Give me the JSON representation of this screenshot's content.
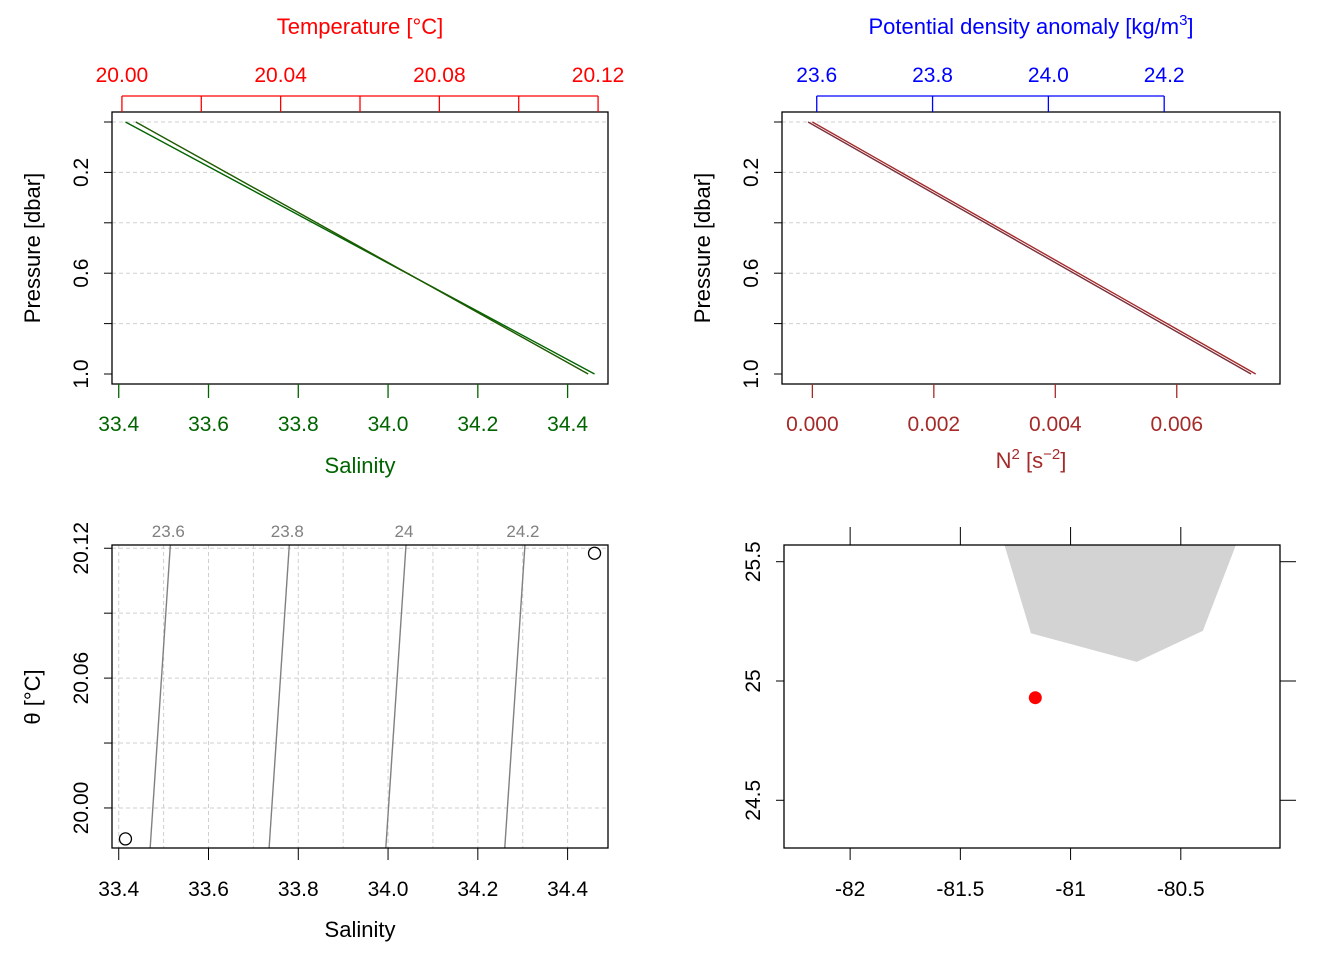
{
  "colors": {
    "temperature": "#ff0000",
    "salinity": "#006400",
    "density": "#0000ff",
    "n2": "#a52a2a",
    "profile_line": "#1e5a00",
    "density_profile_line": "#7a2e3a",
    "isopycnal": "#808080",
    "grid": "#cfcfcf",
    "coastline_fill": "#d3d3d3",
    "station": "#ff0000"
  },
  "chart_data": [
    {
      "id": "ts-profile",
      "type": "line",
      "top_axis_label": "Temperature [°C]",
      "top_ticks": [
        "20.00",
        "20.04",
        "20.08",
        "20.12"
      ],
      "top_lim": [
        19.9975,
        20.1225
      ],
      "bottom_axis_label": "Salinity",
      "bottom_ticks": [
        "33.4",
        "33.6",
        "33.8",
        "34.0",
        "34.2",
        "34.4"
      ],
      "bottom_lim": [
        33.385,
        34.49
      ],
      "ylabel": "Pressure [dbar]",
      "y_ticks": [
        "0.2",
        "0.6",
        "1.0"
      ],
      "ylim_reversed": [
        1.0,
        0.0
      ],
      "grid": true,
      "series": [
        {
          "x": [
            33.415,
            34.46
          ],
          "y": [
            0.0,
            1.0
          ]
        },
        {
          "x": [
            20.0035,
            20.1175
          ],
          "y": [
            0.0,
            1.0
          ]
        }
      ]
    },
    {
      "id": "density-profile",
      "type": "line",
      "top_axis_label": "Potential density anomaly [kg/m",
      "top_axis_label_sup": "3",
      "top_axis_label_end": "]",
      "top_ticks": [
        "23.6",
        "23.8",
        "24.0",
        "24.2"
      ],
      "top_lim": [
        23.54,
        24.4
      ],
      "bottom_axis_label_base": "N",
      "bottom_axis_label_sup1": "2",
      "bottom_axis_label_mid": " [s",
      "bottom_axis_label_sup2": "−2",
      "bottom_axis_label_end": "]",
      "bottom_ticks": [
        "0.000",
        "0.002",
        "0.004",
        "0.006"
      ],
      "bottom_lim": [
        -0.0005,
        0.0077
      ],
      "ylabel": "Pressure [dbar]",
      "y_ticks": [
        "0.2",
        "0.6",
        "1.0"
      ],
      "ylim_reversed": [
        1.0,
        0.0
      ],
      "grid": true,
      "series": [
        {
          "x": [
            0.0,
            0.0073
          ],
          "y": [
            0.0,
            1.0
          ]
        },
        {
          "x": [
            23.585,
            24.35
          ],
          "y": [
            0.0,
            1.0
          ]
        }
      ]
    },
    {
      "id": "ts-diagram",
      "type": "scatter",
      "xlabel": "Salinity",
      "ylabel": "θ [°C]",
      "x_ticks": [
        "33.4",
        "33.6",
        "33.8",
        "34.0",
        "34.2",
        "34.4"
      ],
      "xlim": [
        33.385,
        34.49
      ],
      "y_ticks": [
        "20.00",
        "20.06",
        "20.12"
      ],
      "ylim": [
        19.9815,
        20.1215
      ],
      "grid": true,
      "points": [
        {
          "x": 33.415,
          "y": 19.9857
        },
        {
          "x": 34.46,
          "y": 20.1177
        }
      ],
      "isopycnals": [
        {
          "label": "23.6",
          "x_bottom": 33.47,
          "x_top": 33.515
        },
        {
          "label": "23.8",
          "x_bottom": 33.735,
          "x_top": 33.78
        },
        {
          "label": "24",
          "x_bottom": 33.995,
          "x_top": 34.04
        },
        {
          "label": "24.2",
          "x_bottom": 34.26,
          "x_top": 34.305
        }
      ]
    },
    {
      "id": "station-map",
      "type": "scatter",
      "xlabel": "",
      "ylabel": "",
      "x_ticks": [
        "-82",
        "-81.5",
        "-81",
        "-80.5"
      ],
      "xlim": [
        -82.3,
        -80.05
      ],
      "y_ticks": [
        "24.5",
        "25",
        "25.5"
      ],
      "ylim": [
        24.3,
        25.57
      ],
      "grid": false,
      "points": [
        {
          "x": -81.16,
          "y": 24.93
        }
      ],
      "coastline": [
        [
          -81.3,
          25.57
        ],
        [
          -80.25,
          25.57
        ],
        [
          -80.4,
          25.21
        ],
        [
          -80.7,
          25.08
        ],
        [
          -81.18,
          25.2
        ]
      ]
    }
  ]
}
